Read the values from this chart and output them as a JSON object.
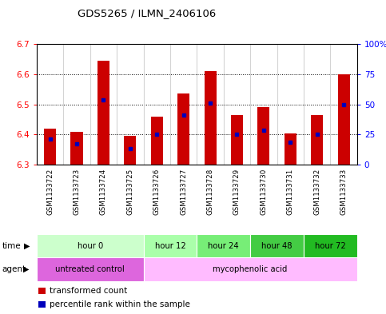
{
  "title": "GDS5265 / ILMN_2406106",
  "samples": [
    "GSM1133722",
    "GSM1133723",
    "GSM1133724",
    "GSM1133725",
    "GSM1133726",
    "GSM1133727",
    "GSM1133728",
    "GSM1133729",
    "GSM1133730",
    "GSM1133731",
    "GSM1133732",
    "GSM1133733"
  ],
  "bar_tops": [
    6.42,
    6.41,
    6.645,
    6.395,
    6.46,
    6.535,
    6.61,
    6.465,
    6.49,
    6.405,
    6.465,
    6.6
  ],
  "percentile_values": [
    6.385,
    6.37,
    6.515,
    6.355,
    6.4,
    6.465,
    6.505,
    6.4,
    6.415,
    6.375,
    6.4,
    6.5
  ],
  "bar_bottom": 6.3,
  "ylim": [
    6.3,
    6.7
  ],
  "yticks_left": [
    6.3,
    6.4,
    6.5,
    6.6,
    6.7
  ],
  "yticks_right": [
    0,
    25,
    50,
    75,
    100
  ],
  "bar_color": "#cc0000",
  "percentile_color": "#0000bb",
  "time_groups": [
    {
      "label": "hour 0",
      "start": 0,
      "end": 3,
      "color": "#ccffcc"
    },
    {
      "label": "hour 12",
      "start": 4,
      "end": 5,
      "color": "#aaffaa"
    },
    {
      "label": "hour 24",
      "start": 6,
      "end": 7,
      "color": "#77ee77"
    },
    {
      "label": "hour 48",
      "start": 8,
      "end": 9,
      "color": "#44cc44"
    },
    {
      "label": "hour 72",
      "start": 10,
      "end": 11,
      "color": "#22bb22"
    }
  ],
  "agent_groups": [
    {
      "label": "untreated control",
      "start": 0,
      "end": 3,
      "color": "#dd66dd"
    },
    {
      "label": "mycophenolic acid",
      "start": 4,
      "end": 11,
      "color": "#ffbbff"
    }
  ],
  "bg_color": "#d4d4d4",
  "bar_width": 0.45
}
